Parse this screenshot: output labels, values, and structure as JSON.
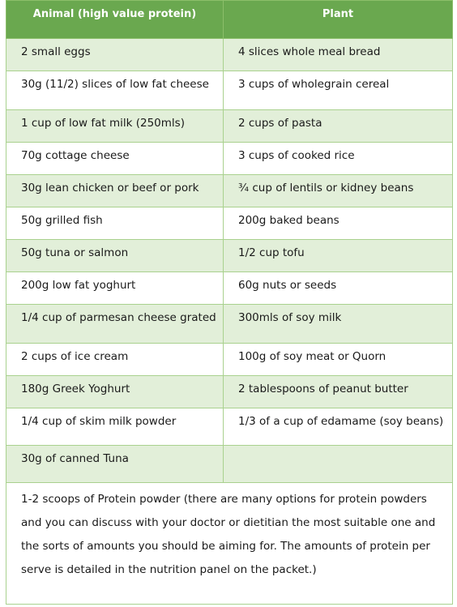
{
  "colors": {
    "header": "#6aa84f",
    "row_shade": "#e2efd9",
    "border": "#a9d18e"
  },
  "table": {
    "headers": [
      "Animal (high value protein)",
      "Plant"
    ],
    "rows": [
      [
        "2 small eggs",
        "4 slices whole meal bread"
      ],
      [
        "30g (11/2) slices of low fat cheese",
        "3 cups of wholegrain cereal"
      ],
      [
        "1 cup of low fat milk (250mls)",
        "2 cups of pasta"
      ],
      [
        "70g cottage cheese",
        "3 cups of cooked rice"
      ],
      [
        "30g lean chicken or beef or pork",
        "¾ cup of lentils or kidney beans"
      ],
      [
        "50g grilled fish",
        "200g baked beans"
      ],
      [
        "50g tuna or salmon",
        "1/2 cup tofu"
      ],
      [
        "200g low fat yoghurt",
        "60g nuts or seeds"
      ],
      [
        "1/4 cup of parmesan cheese grated",
        "300mls of soy milk"
      ],
      [
        "2 cups of ice cream",
        "100g of soy meat or Quorn"
      ],
      [
        "180g Greek Yoghurt",
        "2 tablespoons of peanut butter"
      ],
      [
        "1/4 cup of skim milk powder",
        "1/3 of a cup of edamame (soy beans)"
      ],
      [
        "30g of canned Tuna",
        ""
      ]
    ],
    "footer_note": "1-2 scoops of Protein powder (there are many options for protein powders and you can discuss with your doctor or dietitian the most suitable one and the sorts of amounts you should be aiming for. The amounts of protein per serve is detailed in the nutrition panel on the packet.)"
  }
}
